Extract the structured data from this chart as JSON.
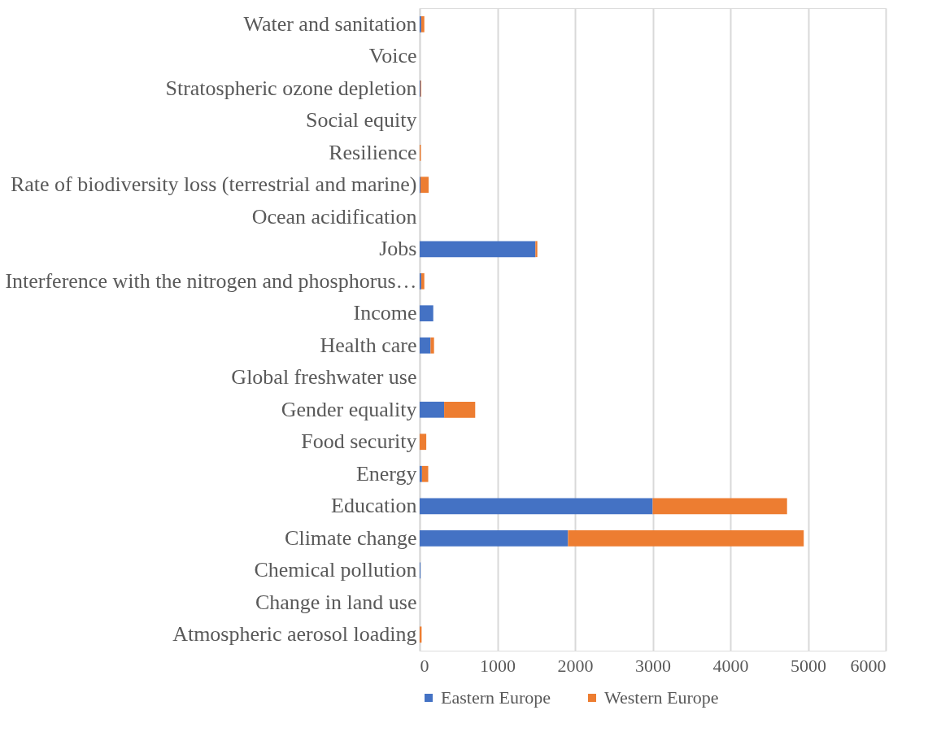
{
  "chart_data": {
    "type": "bar",
    "orientation": "horizontal",
    "stacked": true,
    "categories": [
      "Water and sanitation",
      "Voice",
      "Stratospheric ozone depletion",
      "Social equity",
      "Resilience",
      "Rate of biodiversity loss (terrestrial and marine)",
      "Ocean acidification",
      "Jobs",
      "Interference with the nitrogen and phosphorus…",
      "Income",
      "Health care",
      "Global freshwater use",
      "Gender equality",
      "Food security",
      "Energy",
      "Education",
      "Climate change",
      "Chemical pollution",
      "Change in land use",
      "Atmospheric aerosol loading"
    ],
    "series": [
      {
        "name": "Eastern Europe",
        "color": "#4472c4",
        "values": [
          20,
          0,
          10,
          null,
          0,
          10,
          0,
          1490,
          20,
          175,
          140,
          null,
          315,
          0,
          30,
          3000,
          1910,
          10,
          0,
          null
        ]
      },
      {
        "name": "Western Europe",
        "color": "#ed7d31",
        "values": [
          40,
          0,
          10,
          0,
          15,
          105,
          0,
          25,
          40,
          0,
          45,
          0,
          400,
          85,
          80,
          1730,
          3035,
          0,
          0,
          25
        ]
      }
    ],
    "xlim": [
      0,
      6000
    ],
    "xticks": [
      0,
      1000,
      2000,
      3000,
      4000,
      5000,
      6000
    ],
    "grid": "x",
    "legend": "bottom"
  }
}
